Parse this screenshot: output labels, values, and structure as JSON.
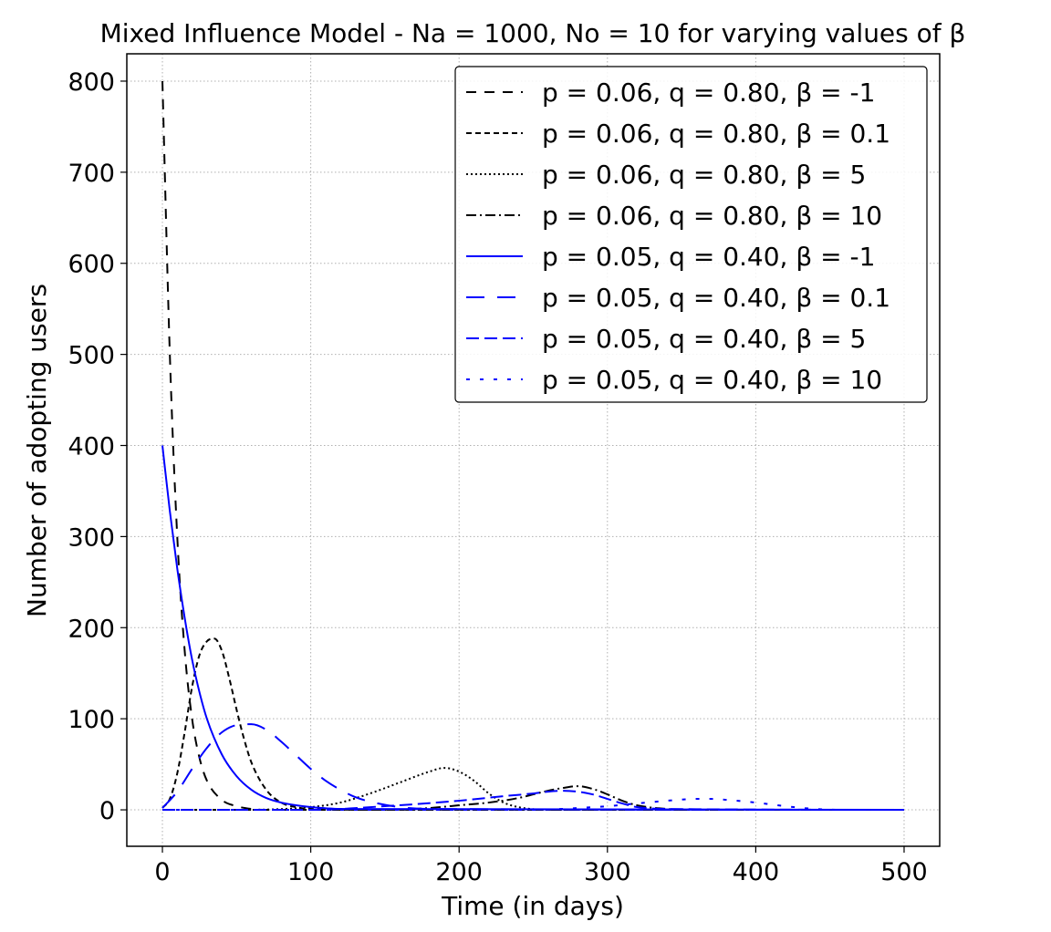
{
  "chart_data": {
    "type": "line",
    "title": "Mixed Influence Model - Na = 1000, No = 10 for varying values of β",
    "xlabel": "Time (in days)",
    "ylabel": "Number of adopting users",
    "xlim": [
      -24,
      524
    ],
    "ylim": [
      -40,
      830
    ],
    "x_ticks": [
      0,
      100,
      200,
      300,
      400,
      500
    ],
    "y_ticks": [
      0,
      100,
      200,
      300,
      400,
      500,
      600,
      700,
      800
    ],
    "grid": true,
    "legend_position": "top-right",
    "series": [
      {
        "name": "p = 0.06, q = 0.80, β = -1",
        "color": "#000000",
        "style": "dashed",
        "x": [
          0,
          5,
          10,
          15,
          20,
          25,
          30,
          40,
          50,
          60,
          70,
          80,
          100,
          150,
          500
        ],
        "y": [
          800,
          500,
          300,
          175,
          100,
          57,
          32,
          11,
          4,
          1,
          0,
          0,
          0,
          0,
          0
        ]
      },
      {
        "name": "p = 0.06, q = 0.80, β = 0.1",
        "color": "#000000",
        "style": "short-dashed",
        "x": [
          0,
          5,
          10,
          15,
          20,
          25,
          30,
          35,
          40,
          45,
          50,
          55,
          60,
          70,
          80,
          90,
          100,
          150,
          500
        ],
        "y": [
          2,
          12,
          40,
          85,
          135,
          170,
          185,
          188,
          175,
          145,
          110,
          78,
          52,
          22,
          8,
          3,
          1,
          0,
          0
        ]
      },
      {
        "name": "p = 0.06, q = 0.80, β = 5",
        "color": "#000000",
        "style": "dotted",
        "x": [
          0,
          50,
          100,
          120,
          140,
          160,
          180,
          190,
          200,
          210,
          220,
          230,
          240,
          260,
          500
        ],
        "y": [
          0,
          0,
          3,
          8,
          18,
          30,
          42,
          46,
          42,
          32,
          18,
          8,
          3,
          0,
          0
        ]
      },
      {
        "name": "p = 0.06, q = 0.80, β = 10",
        "color": "#000000",
        "style": "dash-dot",
        "x": [
          0,
          150,
          180,
          200,
          220,
          240,
          260,
          270,
          280,
          290,
          300,
          310,
          320,
          340,
          360,
          500
        ],
        "y": [
          0,
          0,
          2,
          5,
          8,
          13,
          21,
          24,
          26,
          23,
          17,
          10,
          5,
          1,
          0,
          0
        ]
      },
      {
        "name": "p = 0.05, q = 0.40, β = -1",
        "color": "#0000ff",
        "style": "solid",
        "x": [
          0,
          5,
          10,
          15,
          20,
          25,
          30,
          40,
          50,
          60,
          70,
          80,
          90,
          100,
          120,
          500
        ],
        "y": [
          400,
          328,
          265,
          211,
          165,
          129,
          100,
          61,
          37,
          22,
          13,
          8,
          5,
          3,
          1,
          0
        ]
      },
      {
        "name": "p = 0.05, q = 0.40, β = 0.1",
        "color": "#0000ff",
        "style": "long-dashed",
        "x": [
          0,
          10,
          20,
          30,
          40,
          50,
          60,
          70,
          80,
          90,
          100,
          110,
          120,
          130,
          140,
          160,
          180,
          500
        ],
        "y": [
          2,
          20,
          45,
          68,
          85,
          93,
          94,
          88,
          75,
          60,
          45,
          32,
          22,
          14,
          9,
          3,
          1,
          0
        ]
      },
      {
        "name": "p = 0.05, q = 0.40, β = 5",
        "color": "#0000ff",
        "style": "medium-dashed",
        "x": [
          0,
          100,
          150,
          200,
          230,
          250,
          260,
          270,
          280,
          290,
          300,
          310,
          320,
          340,
          500
        ],
        "y": [
          0,
          0,
          4,
          10,
          15,
          18,
          20,
          21,
          20,
          17,
          12,
          7,
          3,
          1,
          0
        ]
      },
      {
        "name": "p = 0.05, q = 0.40, β = 10",
        "color": "#0000ff",
        "style": "sparse-dotted",
        "x": [
          0,
          250,
          280,
          300,
          320,
          340,
          360,
          370,
          380,
          400,
          420,
          440,
          460,
          500
        ],
        "y": [
          0,
          0,
          2,
          4,
          7,
          10,
          12,
          12,
          11,
          8,
          4,
          1,
          0,
          0
        ]
      }
    ]
  }
}
